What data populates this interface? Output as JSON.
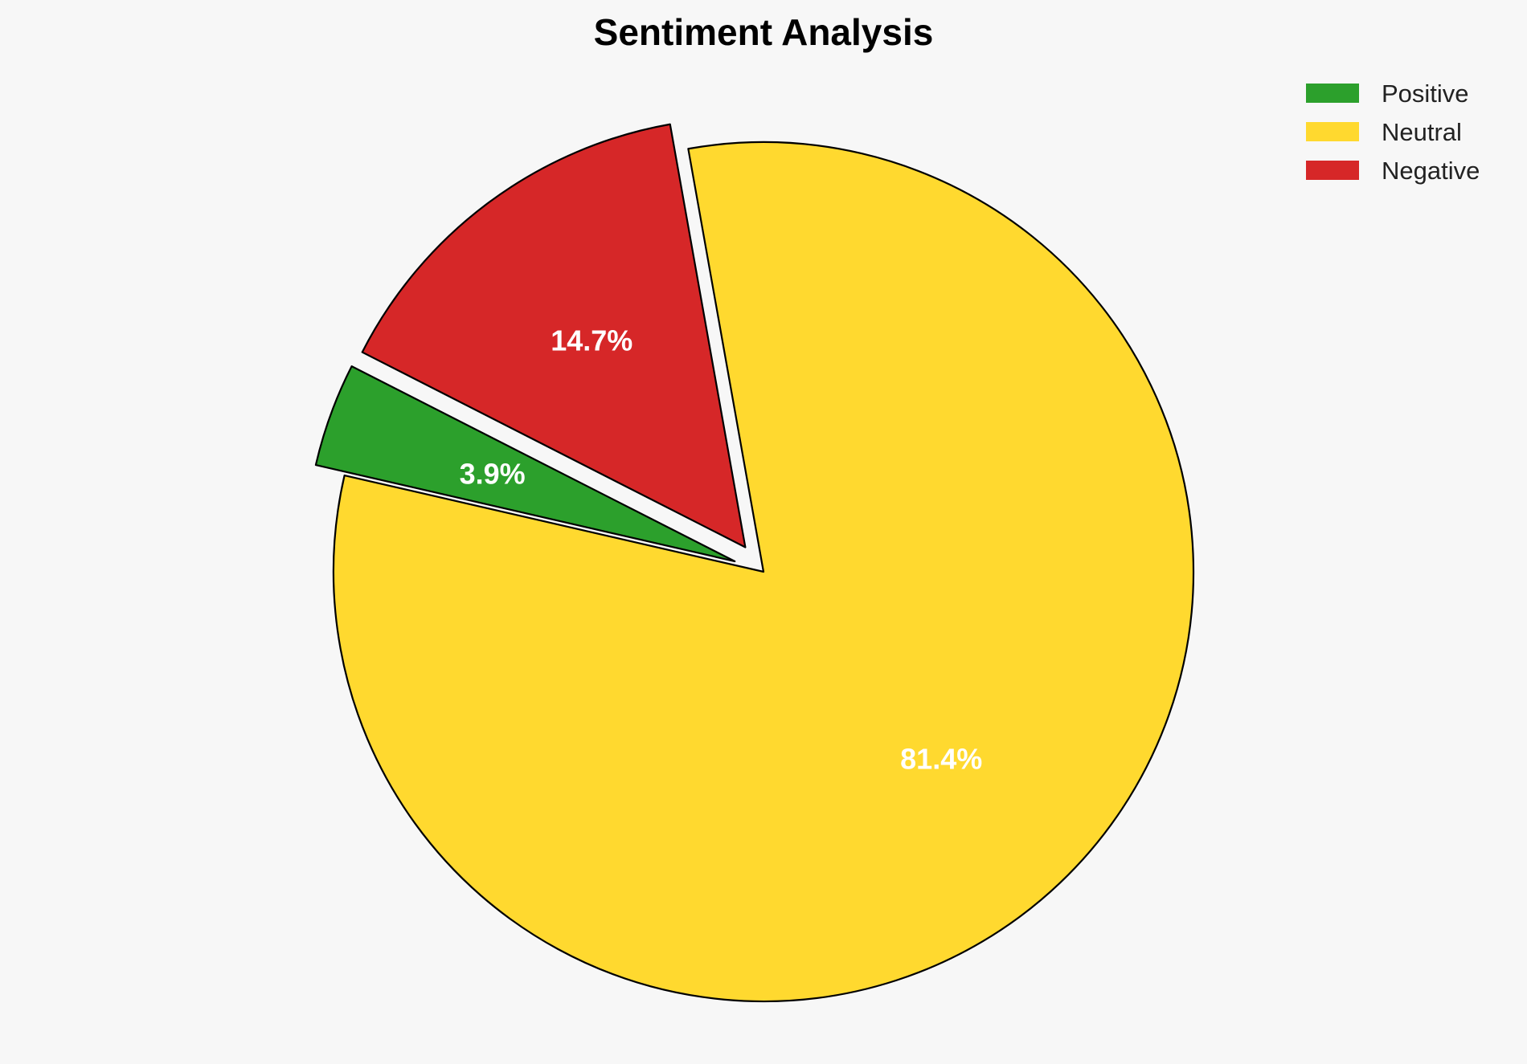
{
  "chart_data": {
    "type": "pie",
    "title": "Sentiment Analysis",
    "categories": [
      "Positive",
      "Neutral",
      "Negative"
    ],
    "values": [
      3.9,
      81.4,
      14.7
    ],
    "labels": [
      "3.9%",
      "81.4%",
      "14.7%"
    ],
    "colors": [
      "#2ca02c",
      "#ffd92f",
      "#d62728"
    ],
    "exploded": [
      true,
      false,
      true
    ],
    "start_angle_deg": 153,
    "direction": "counterclockwise",
    "legend_position": "top-right"
  }
}
